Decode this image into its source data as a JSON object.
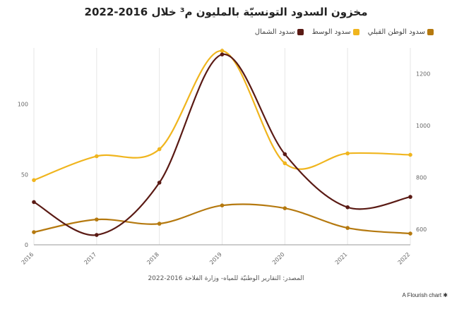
{
  "chart_data": {
    "type": "line",
    "title": "مخزون السدود التونسيّة بالمليون م³ خلال 2016-2022",
    "categories": [
      "2016",
      "2017",
      "2018",
      "2019",
      "2020",
      "2021",
      "2022"
    ],
    "series": [
      {
        "name": "سدود الشمال",
        "color": "#5a1a14",
        "axis": "right",
        "values": [
          705,
          578,
          780,
          1275,
          890,
          685,
          725
        ]
      },
      {
        "name": "سدود الوسط",
        "color": "#f0b51e",
        "axis": "left",
        "values": [
          46,
          63,
          68,
          138,
          58,
          65,
          64
        ]
      },
      {
        "name": "سدود الوطن القبلي",
        "color": "#b5790f",
        "axis": "left",
        "values": [
          9,
          18,
          15,
          28,
          26,
          12,
          8
        ]
      }
    ],
    "y_left": {
      "ticks": [
        0,
        50,
        100
      ],
      "lim": [
        0,
        140
      ]
    },
    "y_right": {
      "ticks": [
        600,
        800,
        1000,
        1200
      ],
      "lim": [
        540,
        1300
      ]
    },
    "grid": "vertical",
    "legend_position": "top-right"
  },
  "source": "المصدر: التقارير الوطنيّة للمياه- وزارة الفلاحة 2016-2022",
  "credit": "A Flourish chart"
}
